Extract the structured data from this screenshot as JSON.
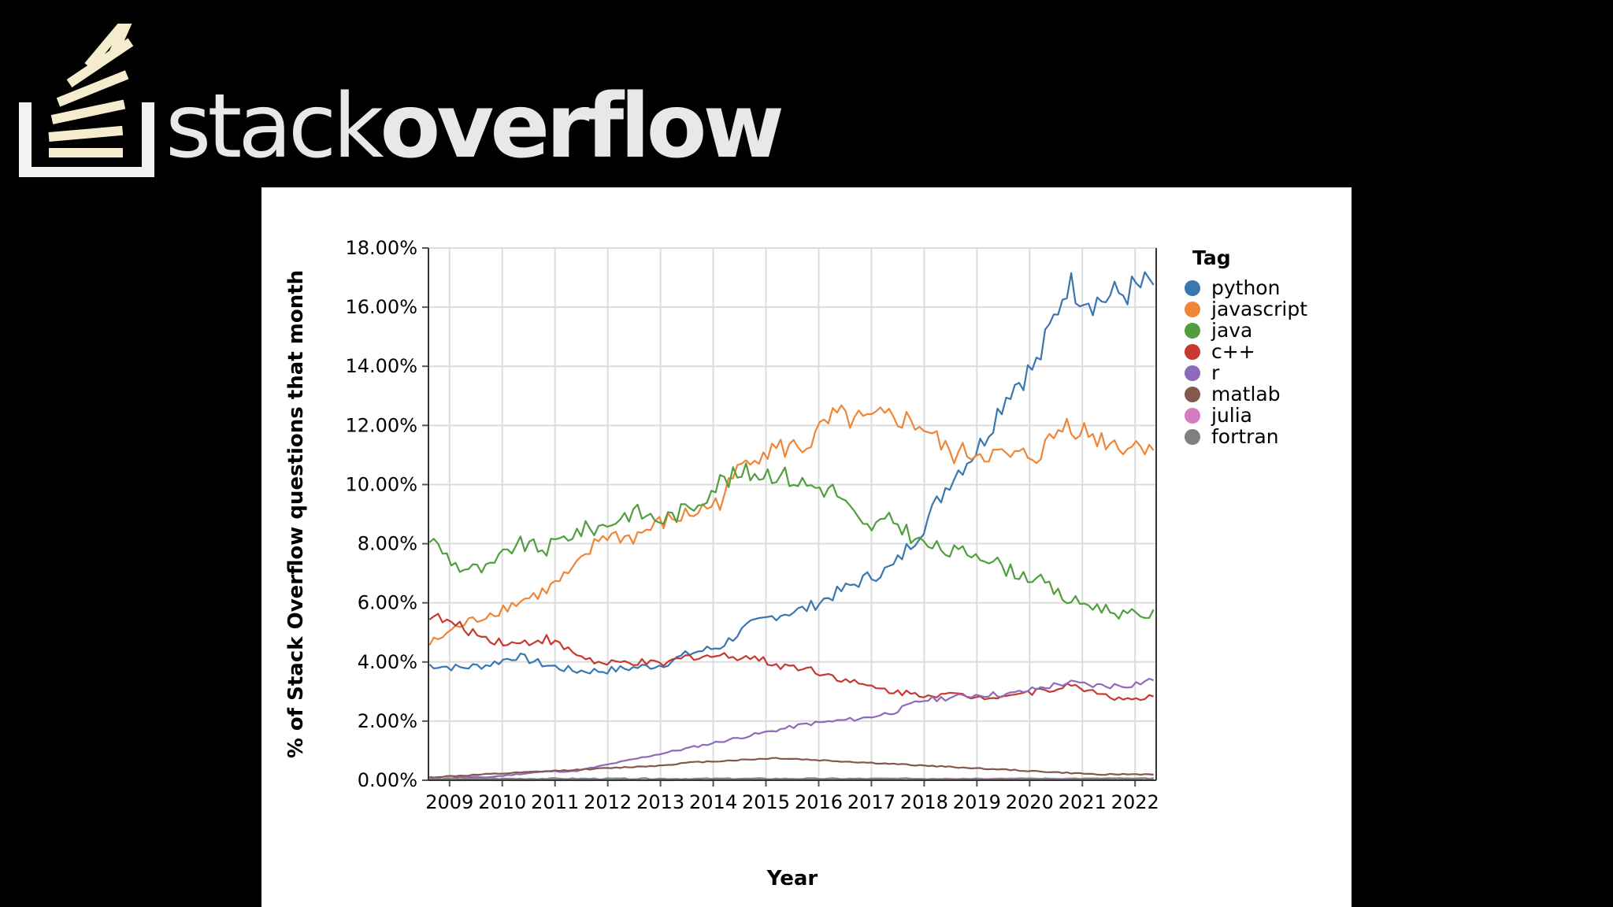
{
  "brand": {
    "name_light": "stack",
    "name_bold": "overflow",
    "logo_color": "#f5eccd",
    "text_color": "#e8e8e8"
  },
  "chart_data": {
    "type": "line",
    "title": "",
    "xlabel": "Year",
    "ylabel": "% of Stack Overflow questions that month",
    "xlim": [
      2008.6,
      2022.4
    ],
    "ylim": [
      0,
      18
    ],
    "y_ticks": [
      "0.00%",
      "2.00%",
      "4.00%",
      "6.00%",
      "8.00%",
      "10.00%",
      "12.00%",
      "14.00%",
      "16.00%",
      "18.00%"
    ],
    "x_ticks": [
      "2009",
      "2010",
      "2011",
      "2012",
      "2013",
      "2014",
      "2015",
      "2016",
      "2017",
      "2018",
      "2019",
      "2020",
      "2021",
      "2022"
    ],
    "legend_title": "Tag",
    "legend_position": "right",
    "grid": true,
    "series": [
      {
        "name": "python",
        "color": "#3a76af",
        "values": [
          3.9,
          3.8,
          3.9,
          4.2,
          3.9,
          3.7,
          3.7,
          3.8,
          3.9,
          4.3,
          4.5,
          5.2,
          5.6,
          5.8,
          6.3,
          6.8,
          7.2,
          8.5,
          10.2,
          11.3,
          13.2,
          14.1,
          16.8,
          16.2,
          16.5,
          16.8
        ]
      },
      {
        "name": "javascript",
        "color": "#ef8536",
        "values": [
          4.6,
          5.2,
          5.6,
          6.0,
          6.4,
          7.1,
          8.3,
          8.2,
          8.7,
          9.0,
          9.4,
          11.0,
          11.2,
          11.3,
          12.3,
          12.1,
          12.3,
          12.0,
          11.0,
          11.1,
          10.9,
          11.0,
          12.1,
          11.6,
          11.3,
          11.4
        ]
      },
      {
        "name": "java",
        "color": "#519e3e",
        "values": [
          8.2,
          7.2,
          7.1,
          8.0,
          7.8,
          8.4,
          8.6,
          9.1,
          8.8,
          9.2,
          10.1,
          10.4,
          10.4,
          10.0,
          9.8,
          8.5,
          8.8,
          8.0,
          7.7,
          7.7,
          7.1,
          6.8,
          6.1,
          5.9,
          5.6,
          5.6
        ]
      },
      {
        "name": "c++",
        "color": "#c53932",
        "values": [
          5.6,
          5.2,
          4.8,
          4.6,
          4.8,
          4.3,
          3.9,
          4.0,
          3.9,
          4.2,
          4.2,
          4.2,
          3.9,
          3.8,
          3.5,
          3.2,
          3.0,
          2.9,
          2.9,
          2.8,
          2.9,
          3.0,
          3.2,
          3.0,
          2.7,
          2.8
        ]
      },
      {
        "name": "r",
        "color": "#8d6bb8",
        "values": [
          0.0,
          0.1,
          0.1,
          0.2,
          0.3,
          0.3,
          0.5,
          0.7,
          0.9,
          1.1,
          1.3,
          1.5,
          1.7,
          1.9,
          2.0,
          2.1,
          2.3,
          2.7,
          2.8,
          2.9,
          2.9,
          3.1,
          3.3,
          3.2,
          3.2,
          3.4
        ]
      },
      {
        "name": "matlab",
        "color": "#84584e",
        "values": [
          0.1,
          0.15,
          0.2,
          0.25,
          0.3,
          0.35,
          0.4,
          0.45,
          0.5,
          0.6,
          0.65,
          0.7,
          0.75,
          0.7,
          0.65,
          0.6,
          0.55,
          0.5,
          0.45,
          0.4,
          0.35,
          0.3,
          0.25,
          0.2,
          0.2,
          0.2
        ]
      },
      {
        "name": "julia",
        "color": "#d57dbf",
        "values": [
          0.0,
          0.0,
          0.0,
          0.0,
          0.0,
          0.0,
          0.0,
          0.0,
          0.0,
          0.0,
          0.0,
          0.01,
          0.02,
          0.03,
          0.03,
          0.04,
          0.05,
          0.05,
          0.05,
          0.06,
          0.06,
          0.06,
          0.06,
          0.06,
          0.06,
          0.06
        ]
      },
      {
        "name": "fortran",
        "color": "#7f7f7f",
        "values": [
          0.05,
          0.05,
          0.05,
          0.05,
          0.05,
          0.05,
          0.05,
          0.05,
          0.05,
          0.05,
          0.05,
          0.05,
          0.05,
          0.05,
          0.05,
          0.05,
          0.05,
          0.05,
          0.05,
          0.05,
          0.05,
          0.05,
          0.05,
          0.05,
          0.05,
          0.05
        ]
      }
    ]
  }
}
